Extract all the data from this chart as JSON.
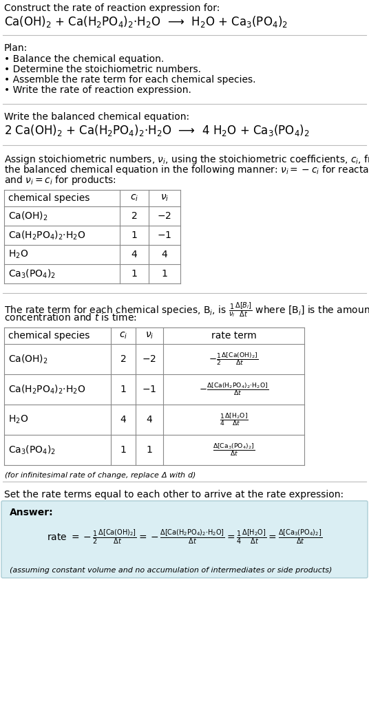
{
  "title_line1": "Construct the rate of reaction expression for:",
  "reaction_unbalanced": "Ca(OH)$_2$ + Ca(H$_2$PO$_4$)$_2$·H$_2$O  ⟶  H$_2$O + Ca$_3$(PO$_4$)$_2$",
  "plan_header": "Plan:",
  "plan_items": [
    "• Balance the chemical equation.",
    "• Determine the stoichiometric numbers.",
    "• Assemble the rate term for each chemical species.",
    "• Write the rate of reaction expression."
  ],
  "balanced_header": "Write the balanced chemical equation:",
  "reaction_balanced": "2 Ca(OH)$_2$ + Ca(H$_2$PO$_4$)$_2$·H$_2$O  ⟶  4 H$_2$O + Ca$_3$(PO$_4$)$_2$",
  "stoich_lines": [
    "Assign stoichiometric numbers, $\\nu_i$, using the stoichiometric coefficients, $c_i$, from",
    "the balanced chemical equation in the following manner: $\\nu_i = -c_i$ for reactants",
    "and $\\nu_i = c_i$ for products:"
  ],
  "table1_headers": [
    "chemical species",
    "$c_i$",
    "$\\nu_i$"
  ],
  "table1_rows": [
    [
      "Ca(OH)$_2$",
      "2",
      "$-2$"
    ],
    [
      "Ca(H$_2$PO$_4$)$_2$·H$_2$O",
      "1",
      "$-1$"
    ],
    [
      "H$_2$O",
      "4",
      "4"
    ],
    [
      "Ca$_3$(PO$_4$)$_2$",
      "1",
      "1"
    ]
  ],
  "rate_lines": [
    "The rate term for each chemical species, B$_i$, is $\\frac{1}{\\nu_i}\\frac{\\Delta[B_i]}{\\Delta t}$ where [B$_i$] is the amount",
    "concentration and $t$ is time:"
  ],
  "table2_headers": [
    "chemical species",
    "$c_i$",
    "$\\nu_i$",
    "rate term"
  ],
  "table2_rows": [
    [
      "Ca(OH)$_2$",
      "2",
      "$-2$",
      "$-\\frac{1}{2}\\frac{\\Delta[\\mathrm{Ca(OH)_2}]}{\\Delta t}$"
    ],
    [
      "Ca(H$_2$PO$_4$)$_2$·H$_2$O",
      "1",
      "$-1$",
      "$-\\frac{\\Delta[\\mathrm{Ca(H_2PO_4)_2{\\cdot}H_2O}]}{\\Delta t}$"
    ],
    [
      "H$_2$O",
      "4",
      "4",
      "$\\frac{1}{4}\\frac{\\Delta[\\mathrm{H_2O}]}{\\Delta t}$"
    ],
    [
      "Ca$_3$(PO$_4$)$_2$",
      "1",
      "1",
      "$\\frac{\\Delta[\\mathrm{Ca_3(PO_4)_2}]}{\\Delta t}$"
    ]
  ],
  "infinitesimal_note": "(for infinitesimal rate of change, replace Δ with $d$)",
  "set_rate_text": "Set the rate terms equal to each other to arrive at the rate expression:",
  "answer_label": "Answer:",
  "answer_box_color": "#daeef3",
  "answer_border_color": "#aaccd4",
  "answer_note": "(assuming constant volume and no accumulation of intermediates or side products)",
  "bg_color": "#ffffff",
  "text_color": "#000000",
  "sep_color": "#bbbbbb"
}
